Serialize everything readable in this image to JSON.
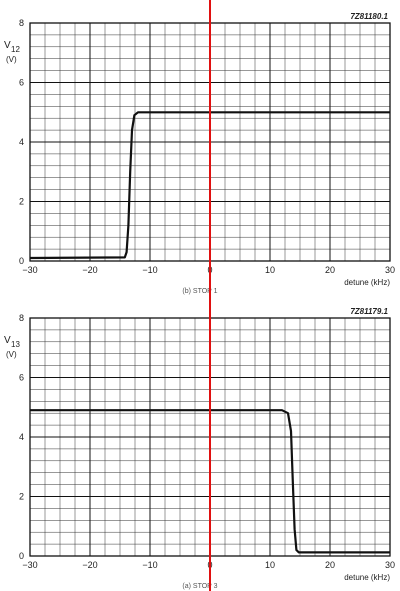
{
  "chart_data": [
    {
      "type": "line",
      "figure_code": "7Z81180.1",
      "caption": "(b) STOP 1",
      "ylabel_main": "V",
      "ylabel_sub": "12",
      "ylabel_unit": "(V)",
      "xlabel": "detune (kHz)",
      "xlim": [
        -30,
        30
      ],
      "ylim": [
        0,
        8
      ],
      "xticks": [
        -30,
        -20,
        -10,
        0,
        10,
        20,
        30
      ],
      "yticks": [
        0,
        2,
        4,
        6,
        8
      ],
      "xtick_labels": [
        "−30",
        "−20",
        "−10",
        "0",
        "10",
        "20",
        "30"
      ],
      "ytick_labels": [
        "0",
        "2",
        "4",
        "6",
        "8"
      ],
      "grid": true,
      "series": [
        {
          "x": [
            -30,
            -14.2,
            -13.9,
            -13.6,
            -13.3,
            -13.0,
            -12.6,
            -12.0,
            -10,
            30
          ],
          "y": [
            0.1,
            0.12,
            0.3,
            1.2,
            3.0,
            4.4,
            4.9,
            5.0,
            5.0,
            5.0
          ]
        }
      ],
      "marker_line": {
        "x": 0,
        "color": "#e01010"
      }
    },
    {
      "type": "line",
      "figure_code": "7Z81179.1",
      "caption": "(a) STOP 3",
      "ylabel_main": "V",
      "ylabel_sub": "13",
      "ylabel_unit": "(V)",
      "xlabel": "detune (kHz)",
      "xlim": [
        -30,
        30
      ],
      "ylim": [
        0,
        8
      ],
      "xticks": [
        -30,
        -20,
        -10,
        0,
        10,
        20,
        30
      ],
      "yticks": [
        0,
        2,
        4,
        6,
        8
      ],
      "xtick_labels": [
        "−30",
        "−20",
        "−10",
        "0",
        "10",
        "20",
        "30"
      ],
      "ytick_labels": [
        "0",
        "2",
        "4",
        "6",
        "8"
      ],
      "grid": true,
      "series": [
        {
          "x": [
            -30,
            12.0,
            13.0,
            13.5,
            13.8,
            14.1,
            14.4,
            14.8,
            16,
            30
          ],
          "y": [
            4.9,
            4.9,
            4.8,
            4.2,
            2.5,
            0.9,
            0.2,
            0.12,
            0.12,
            0.12
          ]
        }
      ],
      "marker_line": {
        "x": 0,
        "color": "#e01010"
      }
    }
  ]
}
